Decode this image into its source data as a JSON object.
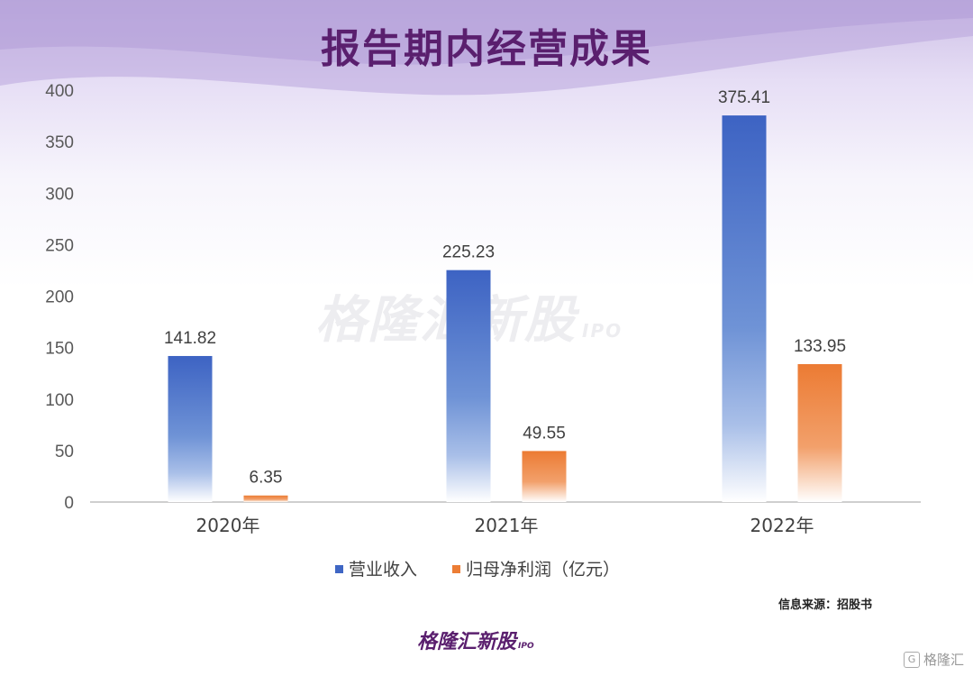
{
  "title": "报告期内经营成果",
  "chart_data": {
    "type": "bar",
    "categories": [
      "2020年",
      "2021年",
      "2022年"
    ],
    "series": [
      {
        "name": "营业收入",
        "values": [
          141.82,
          225.23,
          375.41
        ],
        "labels": [
          "141.82",
          "225.23",
          "375.41"
        ],
        "color": "#3f66c4"
      },
      {
        "name": "归母净利润（亿元）",
        "values": [
          6.35,
          49.55,
          133.95
        ],
        "labels": [
          "6.35",
          "49.55",
          "133.95"
        ],
        "color": "#ec7d35"
      }
    ],
    "yticks": [
      "0",
      "50",
      "100",
      "150",
      "200",
      "250",
      "300",
      "350",
      "400"
    ],
    "ylim": [
      0,
      400
    ],
    "legend": "bottom-center"
  },
  "watermark": {
    "text": "格隆汇新股",
    "suffix": "IPO"
  },
  "source": "信息来源：招股书",
  "logo": {
    "text": "格隆汇新股",
    "suffix": "IPO"
  },
  "corner_logo": {
    "text": "格隆汇",
    "icon": "G"
  }
}
